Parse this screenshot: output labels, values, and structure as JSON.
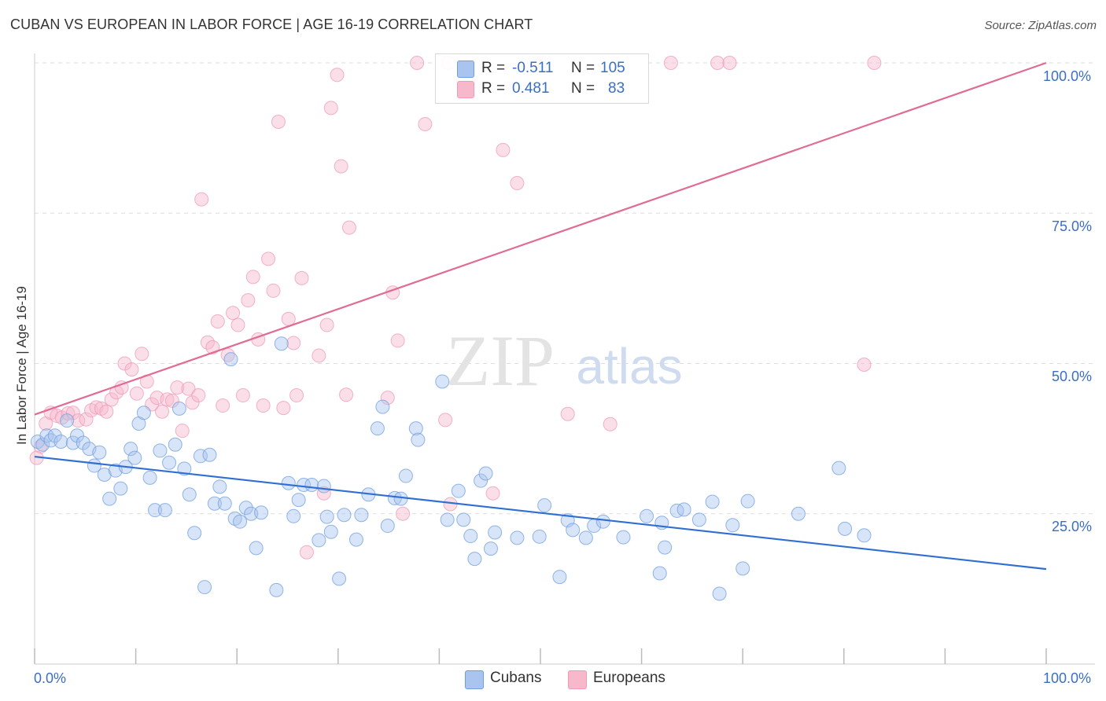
{
  "header": {
    "title": "CUBAN VS EUROPEAN IN LABOR FORCE | AGE 16-19 CORRELATION CHART",
    "source": "Source: ZipAtlas.com"
  },
  "watermark": {
    "zip": "ZIP",
    "atlas": "atlas"
  },
  "legend": {
    "rows": [
      {
        "r_label": "R =",
        "r_value": "-0.511",
        "n_label": "N =",
        "n_value": "105",
        "color": "#a9c4ee"
      },
      {
        "r_label": "R =",
        "r_value": "0.481",
        "n_label": "N =",
        "n_value": "83",
        "color": "#f7b8cb"
      }
    ]
  },
  "bottom_legend": {
    "cubans": "Cubans",
    "europeans": "Europeans"
  },
  "axis": {
    "ylabel": "In Labor Force | Age 16-19",
    "x_min_label": "0.0%",
    "x_max_label": "100.0%",
    "y_ticks": [
      "100.0%",
      "75.0%",
      "50.0%",
      "25.0%"
    ]
  },
  "chart_data": {
    "type": "scatter",
    "title": "CUBAN VS EUROPEAN IN LABOR FORCE | AGE 16-19 CORRELATION CHART",
    "xlabel": "",
    "ylabel": "In Labor Force | Age 16-19",
    "xlim": [
      0,
      100
    ],
    "ylim": [
      0,
      100
    ],
    "grid": true,
    "legend_position": "top-center",
    "series": [
      {
        "name": "Cubans",
        "color": "#6f9fe0",
        "fill": "#a9c4ee",
        "line_color": "#2f6fd4",
        "trend": {
          "x": [
            0,
            100
          ],
          "y": [
            34.5,
            15.8
          ]
        },
        "points": [
          [
            0.3,
            37
          ],
          [
            0.8,
            36.5
          ],
          [
            1.2,
            38
          ],
          [
            1.6,
            37.2
          ],
          [
            2,
            38
          ],
          [
            2.6,
            37
          ],
          [
            3.2,
            40.5
          ],
          [
            3.8,
            36.8
          ],
          [
            4.2,
            38
          ],
          [
            4.8,
            36.8
          ],
          [
            5.4,
            35.8
          ],
          [
            5.9,
            33
          ],
          [
            6.4,
            35.2
          ],
          [
            6.9,
            31.5
          ],
          [
            7.4,
            27.5
          ],
          [
            8,
            32.2
          ],
          [
            8.5,
            29.2
          ],
          [
            9,
            32.8
          ],
          [
            9.5,
            35.8
          ],
          [
            9.9,
            34.3
          ],
          [
            10.3,
            40
          ],
          [
            10.8,
            41.8
          ],
          [
            11.4,
            31
          ],
          [
            11.9,
            25.6
          ],
          [
            12.4,
            35.5
          ],
          [
            12.9,
            25.6
          ],
          [
            13.3,
            33.5
          ],
          [
            13.9,
            36.5
          ],
          [
            14.3,
            42.5
          ],
          [
            14.8,
            32.5
          ],
          [
            15.3,
            28.2
          ],
          [
            15.8,
            21.8
          ],
          [
            16.4,
            34.6
          ],
          [
            16.8,
            12.8
          ],
          [
            17.3,
            34.8
          ],
          [
            17.8,
            26.7
          ],
          [
            18.3,
            29.5
          ],
          [
            18.8,
            26.7
          ],
          [
            19.4,
            50.7
          ],
          [
            19.8,
            24.2
          ],
          [
            20.3,
            23.7
          ],
          [
            20.9,
            26
          ],
          [
            21.4,
            25
          ],
          [
            21.9,
            19.3
          ],
          [
            22.4,
            25.2
          ],
          [
            23.9,
            12.3
          ],
          [
            24.4,
            53.3
          ],
          [
            25.1,
            30.1
          ],
          [
            25.6,
            24.6
          ],
          [
            26.1,
            27.3
          ],
          [
            26.6,
            29.8
          ],
          [
            27.4,
            29.8
          ],
          [
            28.1,
            20.6
          ],
          [
            28.6,
            29.6
          ],
          [
            28.9,
            24.5
          ],
          [
            29.3,
            22
          ],
          [
            30.1,
            14.2
          ],
          [
            30.6,
            24.8
          ],
          [
            31.8,
            20.7
          ],
          [
            32.3,
            24.8
          ],
          [
            33,
            28.2
          ],
          [
            33.9,
            39.2
          ],
          [
            34.4,
            42.8
          ],
          [
            34.9,
            23
          ],
          [
            35.6,
            27.6
          ],
          [
            36.2,
            27.5
          ],
          [
            36.7,
            31.3
          ],
          [
            37.7,
            39.2
          ],
          [
            37.9,
            37.3
          ],
          [
            40.3,
            47
          ],
          [
            40.8,
            24
          ],
          [
            41.9,
            28.8
          ],
          [
            42.4,
            24
          ],
          [
            43.1,
            21.3
          ],
          [
            43.5,
            17.5
          ],
          [
            44.1,
            30.5
          ],
          [
            44.6,
            31.7
          ],
          [
            45.1,
            19.2
          ],
          [
            45.5,
            21.9
          ],
          [
            47.7,
            21
          ],
          [
            49.9,
            21.2
          ],
          [
            50.4,
            26.4
          ],
          [
            51.9,
            14.5
          ],
          [
            52.7,
            23.9
          ],
          [
            53.2,
            22.3
          ],
          [
            54.5,
            21
          ],
          [
            55.3,
            23
          ],
          [
            56.2,
            23.7
          ],
          [
            58.2,
            21.1
          ],
          [
            60.5,
            24.6
          ],
          [
            61.8,
            15.1
          ],
          [
            62,
            23.5
          ],
          [
            62.3,
            19.4
          ],
          [
            63.5,
            25.5
          ],
          [
            64.2,
            25.7
          ],
          [
            65.7,
            24
          ],
          [
            67,
            27
          ],
          [
            67.7,
            11.7
          ],
          [
            69,
            23.1
          ],
          [
            70,
            15.9
          ],
          [
            70.5,
            27.1
          ],
          [
            75.5,
            25
          ],
          [
            79.5,
            32.6
          ],
          [
            80.1,
            22.5
          ],
          [
            82,
            21.4
          ]
        ]
      },
      {
        "name": "Europeans",
        "color": "#f09ab4",
        "fill": "#f7b8cb",
        "line_color": "#e06b93",
        "trend": {
          "x": [
            0,
            100
          ],
          "y": [
            41.5,
            100
          ]
        },
        "points": [
          [
            0.2,
            34.3
          ],
          [
            0.6,
            36.2
          ],
          [
            1.1,
            40
          ],
          [
            1.6,
            41.8
          ],
          [
            2.2,
            41.3
          ],
          [
            2.7,
            41
          ],
          [
            3.3,
            41.7
          ],
          [
            3.8,
            41.8
          ],
          [
            4.3,
            40.5
          ],
          [
            5.1,
            40.7
          ],
          [
            5.6,
            42.2
          ],
          [
            6.1,
            42.7
          ],
          [
            6.6,
            42.5
          ],
          [
            7.1,
            42
          ],
          [
            7.6,
            44
          ],
          [
            8.1,
            45.2
          ],
          [
            8.6,
            46
          ],
          [
            8.9,
            50
          ],
          [
            9.6,
            49
          ],
          [
            10.1,
            45
          ],
          [
            10.6,
            51.6
          ],
          [
            11.1,
            47
          ],
          [
            11.6,
            43.2
          ],
          [
            12.1,
            44.3
          ],
          [
            12.6,
            42
          ],
          [
            13.1,
            44
          ],
          [
            13.6,
            43.8
          ],
          [
            14.1,
            46
          ],
          [
            14.6,
            38.8
          ],
          [
            15.2,
            45.8
          ],
          [
            15.6,
            43.5
          ],
          [
            16.2,
            44.7
          ],
          [
            16.5,
            77.3
          ],
          [
            17.1,
            53.5
          ],
          [
            17.6,
            52.7
          ],
          [
            18.1,
            57
          ],
          [
            18.6,
            43
          ],
          [
            19.1,
            51.4
          ],
          [
            19.6,
            58.4
          ],
          [
            20.1,
            56.4
          ],
          [
            20.6,
            44.7
          ],
          [
            21.1,
            60.5
          ],
          [
            21.6,
            64.4
          ],
          [
            22.1,
            54
          ],
          [
            22.6,
            43
          ],
          [
            23.1,
            67.4
          ],
          [
            23.6,
            62.1
          ],
          [
            24.1,
            90.2
          ],
          [
            24.6,
            42.6
          ],
          [
            25.1,
            57.4
          ],
          [
            25.6,
            53.4
          ],
          [
            25.9,
            44.7
          ],
          [
            26.4,
            64.2
          ],
          [
            26.9,
            18.6
          ],
          [
            28.1,
            51.3
          ],
          [
            28.6,
            28.4
          ],
          [
            28.9,
            56.4
          ],
          [
            29.3,
            92.5
          ],
          [
            29.9,
            98
          ],
          [
            30.3,
            82.8
          ],
          [
            30.8,
            44.8
          ],
          [
            31.1,
            72.6
          ],
          [
            34.9,
            44.3
          ],
          [
            35.4,
            61.8
          ],
          [
            35.9,
            53.8
          ],
          [
            36.4,
            25
          ],
          [
            37.8,
            100
          ],
          [
            38.6,
            89.8
          ],
          [
            40.6,
            40.6
          ],
          [
            40.9,
            100
          ],
          [
            41.1,
            26.6
          ],
          [
            45.3,
            28.4
          ],
          [
            46.3,
            85.5
          ],
          [
            47.7,
            80
          ],
          [
            49.6,
            100
          ],
          [
            50.1,
            100
          ],
          [
            52.7,
            41.6
          ],
          [
            56.9,
            39.9
          ],
          [
            62.9,
            100
          ],
          [
            67.5,
            100
          ],
          [
            68.7,
            100
          ],
          [
            82,
            49.8
          ],
          [
            83,
            100
          ]
        ]
      }
    ]
  }
}
